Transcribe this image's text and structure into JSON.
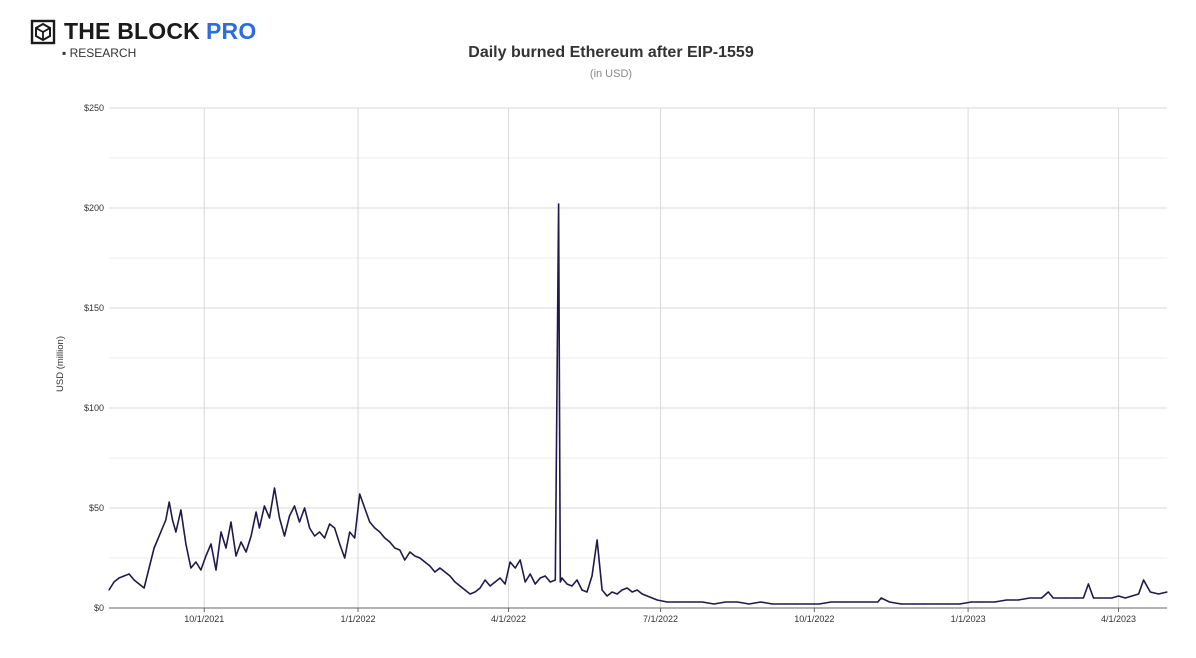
{
  "brand": {
    "name": "THE BLOCK",
    "pro": "PRO",
    "sub": "▪ RESEARCH"
  },
  "chart_data": {
    "type": "line",
    "title": "Daily burned Ethereum after EIP-1559",
    "subtitle": "(in USD)",
    "ylabel": "USD (million)",
    "xlabel": "",
    "ylim": [
      0,
      250
    ],
    "xlim": [
      "2021-08-05",
      "2023-04-30"
    ],
    "yticks": [
      0,
      50,
      100,
      150,
      200,
      250
    ],
    "ytick_labels": [
      "$0",
      "$50",
      "$100",
      "$150",
      "$200",
      "$250"
    ],
    "xticks": [
      "2021-10-01",
      "2022-01-01",
      "2022-04-01",
      "2022-07-01",
      "2022-10-01",
      "2023-01-01",
      "2023-04-01"
    ],
    "xtick_labels": [
      "10/1/2021",
      "1/1/2022",
      "4/1/2022",
      "7/1/2022",
      "10/1/2022",
      "1/1/2023",
      "4/1/2023"
    ],
    "grid": true,
    "color": "#1f1a4a",
    "series": [
      {
        "x": [
          "2021-08-05",
          "2021-08-08",
          "2021-08-11",
          "2021-08-14",
          "2021-08-17",
          "2021-08-20",
          "2021-08-23",
          "2021-08-26",
          "2021-08-29",
          "2021-09-01",
          "2021-09-03",
          "2021-09-05",
          "2021-09-08",
          "2021-09-10",
          "2021-09-12",
          "2021-09-14",
          "2021-09-17",
          "2021-09-20",
          "2021-09-23",
          "2021-09-26",
          "2021-09-29",
          "2021-10-02",
          "2021-10-05",
          "2021-10-08",
          "2021-10-11",
          "2021-10-14",
          "2021-10-17",
          "2021-10-20",
          "2021-10-23",
          "2021-10-26",
          "2021-10-29",
          "2021-11-01",
          "2021-11-03",
          "2021-11-06",
          "2021-11-09",
          "2021-11-12",
          "2021-11-15",
          "2021-11-18",
          "2021-11-21",
          "2021-11-24",
          "2021-11-27",
          "2021-11-30",
          "2021-12-03",
          "2021-12-06",
          "2021-12-09",
          "2021-12-12",
          "2021-12-15",
          "2021-12-18",
          "2021-12-21",
          "2021-12-24",
          "2021-12-27",
          "2021-12-30",
          "2022-01-02",
          "2022-01-05",
          "2022-01-08",
          "2022-01-11",
          "2022-01-14",
          "2022-01-17",
          "2022-01-20",
          "2022-01-23",
          "2022-01-26",
          "2022-01-29",
          "2022-02-01",
          "2022-02-04",
          "2022-02-07",
          "2022-02-10",
          "2022-02-13",
          "2022-02-16",
          "2022-02-19",
          "2022-02-22",
          "2022-02-25",
          "2022-02-28",
          "2022-03-03",
          "2022-03-06",
          "2022-03-09",
          "2022-03-12",
          "2022-03-15",
          "2022-03-18",
          "2022-03-21",
          "2022-03-24",
          "2022-03-27",
          "2022-03-30",
          "2022-04-02",
          "2022-04-05",
          "2022-04-08",
          "2022-04-11",
          "2022-04-14",
          "2022-04-17",
          "2022-04-20",
          "2022-04-23",
          "2022-04-26",
          "2022-04-29",
          "2022-05-01",
          "2022-05-02",
          "2022-05-03",
          "2022-05-06",
          "2022-05-09",
          "2022-05-12",
          "2022-05-15",
          "2022-05-18",
          "2022-05-21",
          "2022-05-24",
          "2022-05-27",
          "2022-05-30",
          "2022-06-02",
          "2022-06-05",
          "2022-06-08",
          "2022-06-11",
          "2022-06-14",
          "2022-06-17",
          "2022-06-20",
          "2022-06-23",
          "2022-06-26",
          "2022-06-29",
          "2022-07-05",
          "2022-07-12",
          "2022-07-19",
          "2022-07-26",
          "2022-08-02",
          "2022-08-09",
          "2022-08-16",
          "2022-08-23",
          "2022-08-30",
          "2022-09-06",
          "2022-09-13",
          "2022-09-20",
          "2022-09-27",
          "2022-10-04",
          "2022-10-11",
          "2022-10-18",
          "2022-10-25",
          "2022-11-01",
          "2022-11-08",
          "2022-11-10",
          "2022-11-15",
          "2022-11-22",
          "2022-11-29",
          "2022-12-06",
          "2022-12-13",
          "2022-12-20",
          "2022-12-27",
          "2023-01-03",
          "2023-01-10",
          "2023-01-17",
          "2023-01-24",
          "2023-01-31",
          "2023-02-07",
          "2023-02-14",
          "2023-02-18",
          "2023-02-21",
          "2023-02-28",
          "2023-03-07",
          "2023-03-11",
          "2023-03-14",
          "2023-03-17",
          "2023-03-21",
          "2023-03-28",
          "2023-04-01",
          "2023-04-05",
          "2023-04-09",
          "2023-04-13",
          "2023-04-16",
          "2023-04-20",
          "2023-04-25",
          "2023-04-30"
        ],
        "y": [
          9,
          13,
          15,
          16,
          17,
          14,
          12,
          10,
          20,
          30,
          34,
          38,
          44,
          53,
          44,
          38,
          49,
          32,
          20,
          23,
          19,
          26,
          32,
          19,
          38,
          30,
          43,
          26,
          33,
          28,
          36,
          48,
          40,
          51,
          45,
          60,
          45,
          36,
          46,
          51,
          43,
          50,
          40,
          36,
          38,
          35,
          42,
          40,
          32,
          25,
          38,
          35,
          57,
          50,
          43,
          40,
          38,
          35,
          33,
          30,
          29,
          24,
          28,
          26,
          25,
          23,
          21,
          18,
          20,
          18,
          16,
          13,
          11,
          9,
          7,
          8,
          10,
          14,
          11,
          13,
          15,
          12,
          23,
          20,
          24,
          13,
          17,
          12,
          15,
          16,
          13,
          14,
          202,
          13,
          15,
          12,
          11,
          14,
          9,
          8,
          16,
          34,
          9,
          6,
          8,
          7,
          9,
          10,
          8,
          9,
          7,
          6,
          5,
          4,
          3,
          3,
          3,
          3,
          2,
          3,
          3,
          2,
          3,
          2,
          2,
          2,
          2,
          2,
          3,
          3,
          3,
          3,
          3,
          5,
          3,
          2,
          2,
          2,
          2,
          2,
          2,
          3,
          3,
          3,
          4,
          4,
          5,
          5,
          8,
          5,
          5,
          5,
          5,
          12,
          5,
          5,
          5,
          6,
          5,
          6,
          7,
          14,
          8,
          7,
          8
        ]
      }
    ]
  }
}
